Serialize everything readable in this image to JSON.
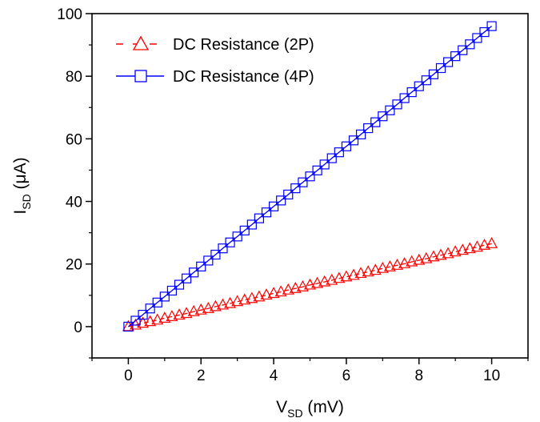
{
  "chart_data": {
    "type": "scatter",
    "title": "",
    "xlabel": {
      "main": "V",
      "sub": "SD",
      "unit": " (mV)"
    },
    "ylabel": {
      "main": "I",
      "sub": "SD",
      "unit": " (μA)"
    },
    "xlim": [
      -1,
      11
    ],
    "ylim": [
      -10,
      100
    ],
    "xticks": [
      0,
      2,
      4,
      6,
      8,
      10
    ],
    "yticks": [
      0,
      20,
      40,
      60,
      80,
      100
    ],
    "grid": false,
    "legend_position": "top-left",
    "x": [
      0.0,
      0.2,
      0.4,
      0.6,
      0.8,
      1.0,
      1.2,
      1.4,
      1.6,
      1.8,
      2.0,
      2.2,
      2.4,
      2.6,
      2.8,
      3.0,
      3.2,
      3.4,
      3.6,
      3.8,
      4.0,
      4.2,
      4.4,
      4.6,
      4.8,
      5.0,
      5.2,
      5.4,
      5.6,
      5.8,
      6.0,
      6.2,
      6.4,
      6.6,
      6.8,
      7.0,
      7.2,
      7.4,
      7.6,
      7.8,
      8.0,
      8.2,
      8.4,
      8.6,
      8.8,
      9.0,
      9.2,
      9.4,
      9.6,
      9.8,
      10.0
    ],
    "series": [
      {
        "name": "DC Resistance (2P)",
        "color": "#ff0000",
        "marker": "triangle",
        "line_style": "dashed",
        "values": [
          0.0,
          0.5,
          1.1,
          1.6,
          2.1,
          2.7,
          3.2,
          3.7,
          4.2,
          4.8,
          5.3,
          5.8,
          6.4,
          6.9,
          7.4,
          8.0,
          8.5,
          9.0,
          9.5,
          10.1,
          10.6,
          11.1,
          11.7,
          12.2,
          12.7,
          13.3,
          13.8,
          14.3,
          14.8,
          15.4,
          15.9,
          16.4,
          17.0,
          17.5,
          18.0,
          18.6,
          19.1,
          19.6,
          20.1,
          20.7,
          21.2,
          21.7,
          22.3,
          22.8,
          23.3,
          23.9,
          24.4,
          24.9,
          25.4,
          26.0,
          26.5
        ]
      },
      {
        "name": "DC Resistance (4P)",
        "color": "#0000ff",
        "marker": "square",
        "line_style": "solid",
        "values": [
          0.0,
          1.9,
          3.8,
          5.8,
          7.7,
          9.6,
          11.5,
          13.4,
          15.4,
          17.3,
          19.2,
          21.1,
          23.0,
          25.0,
          26.9,
          28.8,
          30.7,
          32.6,
          34.6,
          36.5,
          38.4,
          40.3,
          42.2,
          44.2,
          46.1,
          48.0,
          49.9,
          51.8,
          53.8,
          55.7,
          57.6,
          59.5,
          61.4,
          63.4,
          65.3,
          67.2,
          69.1,
          71.0,
          73.0,
          74.9,
          76.8,
          78.7,
          80.6,
          82.6,
          84.5,
          86.4,
          88.3,
          90.2,
          92.2,
          94.1,
          96.0
        ]
      }
    ]
  }
}
